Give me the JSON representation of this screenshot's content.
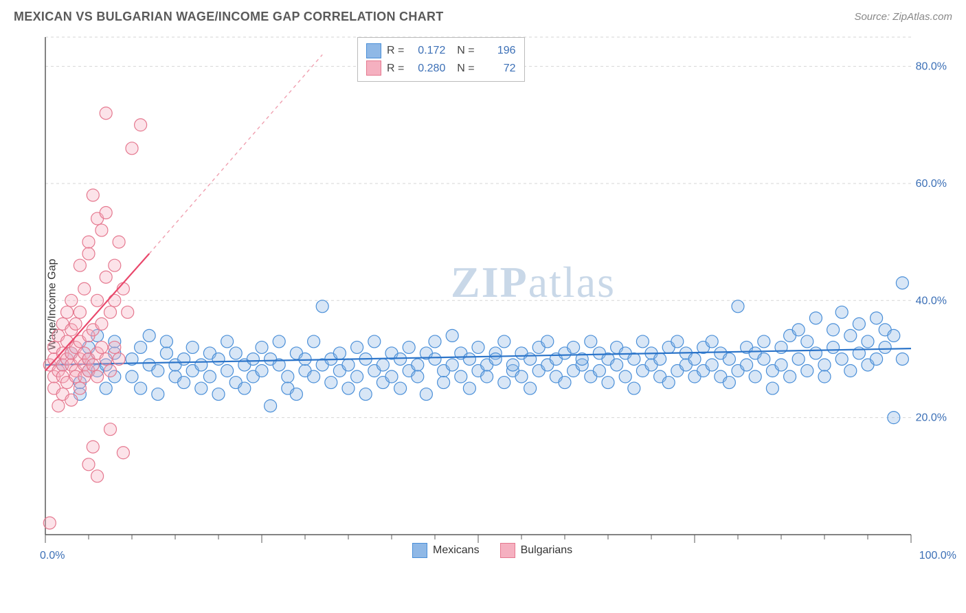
{
  "header": {
    "title": "MEXICAN VS BULGARIAN WAGE/INCOME GAP CORRELATION CHART",
    "source": "Source: ZipAtlas.com"
  },
  "ylabel": "Wage/Income Gap",
  "watermark_a": "ZIP",
  "watermark_b": "atlas",
  "chart": {
    "type": "scatter",
    "background_color": "#ffffff",
    "grid_color": "#d5d5d5",
    "axis_color": "#5a5a5a",
    "xlim": [
      0,
      100
    ],
    "ylim": [
      0,
      85
    ],
    "x_ticks_major": [
      0,
      25,
      50,
      75,
      100
    ],
    "x_ticks_minor_step": 5,
    "x_labels": [
      {
        "v": 0,
        "t": "0.0%"
      },
      {
        "v": 100,
        "t": "100.0%"
      }
    ],
    "y_gridlines": [
      20,
      40,
      60,
      80,
      85
    ],
    "y_labels": [
      {
        "v": 20,
        "t": "20.0%"
      },
      {
        "v": 40,
        "t": "40.0%"
      },
      {
        "v": 60,
        "t": "60.0%"
      },
      {
        "v": 80,
        "t": "80.0%"
      }
    ],
    "marker_radius": 9,
    "marker_fill_opacity": 0.35,
    "marker_stroke_width": 1.2,
    "series": [
      {
        "name": "Mexicans",
        "color_fill": "#8fb8e6",
        "color_stroke": "#4a8fd8",
        "trend": {
          "x1": 0,
          "y1": 29.0,
          "x2": 100,
          "y2": 31.8,
          "stroke": "#2b74c9",
          "width": 2.2,
          "dash": ""
        },
        "stats": {
          "R": "0.172",
          "N": "196"
        },
        "points": [
          [
            2,
            29
          ],
          [
            3,
            31
          ],
          [
            4,
            26
          ],
          [
            4,
            24
          ],
          [
            5,
            30
          ],
          [
            5,
            28
          ],
          [
            5,
            32
          ],
          [
            6,
            34
          ],
          [
            6,
            28
          ],
          [
            7,
            29
          ],
          [
            7,
            25
          ],
          [
            8,
            31
          ],
          [
            8,
            33
          ],
          [
            8,
            27
          ],
          [
            10,
            30
          ],
          [
            10,
            27
          ],
          [
            11,
            32
          ],
          [
            11,
            25
          ],
          [
            12,
            29
          ],
          [
            12,
            34
          ],
          [
            13,
            28
          ],
          [
            13,
            24
          ],
          [
            14,
            31
          ],
          [
            14,
            33
          ],
          [
            15,
            27
          ],
          [
            15,
            29
          ],
          [
            16,
            30
          ],
          [
            16,
            26
          ],
          [
            17,
            28
          ],
          [
            17,
            32
          ],
          [
            18,
            25
          ],
          [
            18,
            29
          ],
          [
            19,
            31
          ],
          [
            19,
            27
          ],
          [
            20,
            30
          ],
          [
            20,
            24
          ],
          [
            21,
            33
          ],
          [
            21,
            28
          ],
          [
            22,
            26
          ],
          [
            22,
            31
          ],
          [
            23,
            29
          ],
          [
            23,
            25
          ],
          [
            24,
            30
          ],
          [
            24,
            27
          ],
          [
            25,
            32
          ],
          [
            25,
            28
          ],
          [
            26,
            22
          ],
          [
            26,
            30
          ],
          [
            27,
            29
          ],
          [
            27,
            33
          ],
          [
            28,
            27
          ],
          [
            28,
            25
          ],
          [
            29,
            31
          ],
          [
            29,
            24
          ],
          [
            30,
            28
          ],
          [
            30,
            30
          ],
          [
            31,
            27
          ],
          [
            31,
            33
          ],
          [
            32,
            29
          ],
          [
            32,
            39
          ],
          [
            33,
            26
          ],
          [
            33,
            30
          ],
          [
            34,
            28
          ],
          [
            34,
            31
          ],
          [
            35,
            25
          ],
          [
            35,
            29
          ],
          [
            36,
            32
          ],
          [
            36,
            27
          ],
          [
            37,
            30
          ],
          [
            37,
            24
          ],
          [
            38,
            28
          ],
          [
            38,
            33
          ],
          [
            39,
            29
          ],
          [
            39,
            26
          ],
          [
            40,
            31
          ],
          [
            40,
            27
          ],
          [
            41,
            30
          ],
          [
            41,
            25
          ],
          [
            42,
            28
          ],
          [
            42,
            32
          ],
          [
            43,
            29
          ],
          [
            43,
            27
          ],
          [
            44,
            31
          ],
          [
            44,
            24
          ],
          [
            45,
            30
          ],
          [
            45,
            33
          ],
          [
            46,
            28
          ],
          [
            46,
            26
          ],
          [
            47,
            34
          ],
          [
            47,
            29
          ],
          [
            48,
            27
          ],
          [
            48,
            31
          ],
          [
            49,
            30
          ],
          [
            49,
            25
          ],
          [
            50,
            28
          ],
          [
            50,
            32
          ],
          [
            51,
            29
          ],
          [
            51,
            27
          ],
          [
            52,
            31
          ],
          [
            52,
            30
          ],
          [
            53,
            26
          ],
          [
            53,
            33
          ],
          [
            54,
            28
          ],
          [
            54,
            29
          ],
          [
            55,
            27
          ],
          [
            55,
            31
          ],
          [
            56,
            30
          ],
          [
            56,
            25
          ],
          [
            57,
            32
          ],
          [
            57,
            28
          ],
          [
            58,
            29
          ],
          [
            58,
            33
          ],
          [
            59,
            27
          ],
          [
            59,
            30
          ],
          [
            60,
            31
          ],
          [
            60,
            26
          ],
          [
            61,
            28
          ],
          [
            61,
            32
          ],
          [
            62,
            29
          ],
          [
            62,
            30
          ],
          [
            63,
            27
          ],
          [
            63,
            33
          ],
          [
            64,
            31
          ],
          [
            64,
            28
          ],
          [
            65,
            30
          ],
          [
            65,
            26
          ],
          [
            66,
            29
          ],
          [
            66,
            32
          ],
          [
            67,
            27
          ],
          [
            67,
            31
          ],
          [
            68,
            30
          ],
          [
            68,
            25
          ],
          [
            69,
            33
          ],
          [
            69,
            28
          ],
          [
            70,
            29
          ],
          [
            70,
            31
          ],
          [
            71,
            27
          ],
          [
            71,
            30
          ],
          [
            72,
            32
          ],
          [
            72,
            26
          ],
          [
            73,
            28
          ],
          [
            73,
            33
          ],
          [
            74,
            29
          ],
          [
            74,
            31
          ],
          [
            75,
            30
          ],
          [
            75,
            27
          ],
          [
            76,
            32
          ],
          [
            76,
            28
          ],
          [
            77,
            29
          ],
          [
            77,
            33
          ],
          [
            78,
            31
          ],
          [
            78,
            27
          ],
          [
            79,
            30
          ],
          [
            79,
            26
          ],
          [
            80,
            28
          ],
          [
            80,
            39
          ],
          [
            81,
            32
          ],
          [
            81,
            29
          ],
          [
            82,
            31
          ],
          [
            82,
            27
          ],
          [
            83,
            33
          ],
          [
            83,
            30
          ],
          [
            84,
            28
          ],
          [
            84,
            25
          ],
          [
            85,
            32
          ],
          [
            85,
            29
          ],
          [
            86,
            34
          ],
          [
            86,
            27
          ],
          [
            87,
            30
          ],
          [
            87,
            35
          ],
          [
            88,
            28
          ],
          [
            88,
            33
          ],
          [
            89,
            31
          ],
          [
            89,
            37
          ],
          [
            90,
            29
          ],
          [
            90,
            27
          ],
          [
            91,
            35
          ],
          [
            91,
            32
          ],
          [
            92,
            30
          ],
          [
            92,
            38
          ],
          [
            93,
            34
          ],
          [
            93,
            28
          ],
          [
            94,
            36
          ],
          [
            94,
            31
          ],
          [
            95,
            33
          ],
          [
            95,
            29
          ],
          [
            96,
            37
          ],
          [
            96,
            30
          ],
          [
            97,
            35
          ],
          [
            97,
            32
          ],
          [
            98,
            34
          ],
          [
            98,
            20
          ],
          [
            99,
            43
          ],
          [
            99,
            30
          ]
        ]
      },
      {
        "name": "Bulgarians",
        "color_fill": "#f5b0c0",
        "color_stroke": "#e5788f",
        "trend": {
          "x1": 0,
          "y1": 28,
          "x2": 12,
          "y2": 48,
          "stroke": "#e9476b",
          "width": 2.2,
          "dash": ""
        },
        "trend_ext": {
          "x1": 12,
          "y1": 48,
          "x2": 32,
          "y2": 82,
          "stroke": "#f0a0b0",
          "width": 1.4,
          "dash": "5,5"
        },
        "stats": {
          "R": "0.280",
          "N": "72"
        },
        "points": [
          [
            0.5,
            29
          ],
          [
            0.5,
            2
          ],
          [
            1,
            27
          ],
          [
            1,
            30
          ],
          [
            1,
            32
          ],
          [
            1,
            25
          ],
          [
            1.5,
            28
          ],
          [
            1.5,
            34
          ],
          [
            1.5,
            22
          ],
          [
            2,
            29
          ],
          [
            2,
            31
          ],
          [
            2,
            36
          ],
          [
            2,
            24
          ],
          [
            2,
            27
          ],
          [
            2.5,
            33
          ],
          [
            2.5,
            30
          ],
          [
            2.5,
            38
          ],
          [
            2.5,
            26
          ],
          [
            3,
            29
          ],
          [
            3,
            31
          ],
          [
            3,
            35
          ],
          [
            3,
            23
          ],
          [
            3,
            40
          ],
          [
            3.5,
            28
          ],
          [
            3.5,
            32
          ],
          [
            3.5,
            36
          ],
          [
            3.5,
            27
          ],
          [
            4,
            46
          ],
          [
            4,
            30
          ],
          [
            4,
            33
          ],
          [
            4,
            25
          ],
          [
            4,
            38
          ],
          [
            4.5,
            29
          ],
          [
            4.5,
            42
          ],
          [
            4.5,
            31
          ],
          [
            4.5,
            27
          ],
          [
            5,
            50
          ],
          [
            5,
            34
          ],
          [
            5,
            48
          ],
          [
            5,
            28
          ],
          [
            5,
            30
          ],
          [
            5,
            12
          ],
          [
            5.5,
            15
          ],
          [
            5.5,
            35
          ],
          [
            5.5,
            58
          ],
          [
            5.5,
            29
          ],
          [
            6,
            40
          ],
          [
            6,
            31
          ],
          [
            6,
            54
          ],
          [
            6,
            27
          ],
          [
            6,
            10
          ],
          [
            6.5,
            52
          ],
          [
            6.5,
            32
          ],
          [
            6.5,
            36
          ],
          [
            7,
            55
          ],
          [
            7,
            30
          ],
          [
            7,
            44
          ],
          [
            7.5,
            38
          ],
          [
            7.5,
            28
          ],
          [
            7.5,
            18
          ],
          [
            8,
            40
          ],
          [
            8,
            46
          ],
          [
            8,
            32
          ],
          [
            8.5,
            50
          ],
          [
            8.5,
            30
          ],
          [
            9,
            42
          ],
          [
            9,
            14
          ],
          [
            9.5,
            38
          ],
          [
            10,
            66
          ],
          [
            11,
            70
          ],
          [
            7,
            72
          ]
        ]
      }
    ]
  },
  "legend_bottom": [
    {
      "label": "Mexicans",
      "fill": "#8fb8e6",
      "stroke": "#4a8fd8"
    },
    {
      "label": "Bulgarians",
      "fill": "#f5b0c0",
      "stroke": "#e5788f"
    }
  ]
}
